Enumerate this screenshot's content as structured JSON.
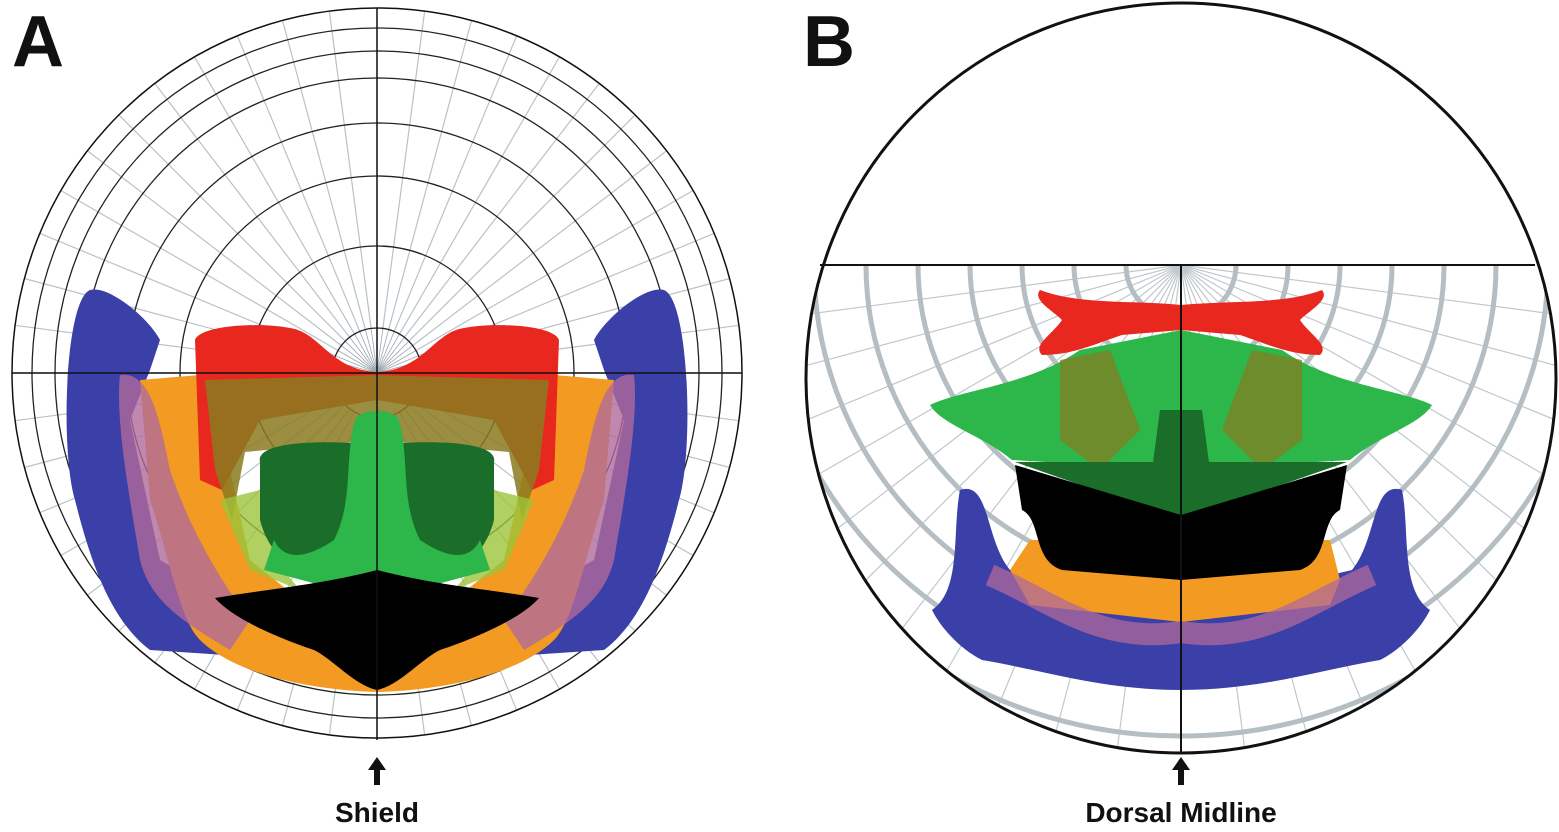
{
  "panels": [
    {
      "label": "A",
      "caption": "Shield"
    },
    {
      "label": "B",
      "caption": "Dorsal Midline"
    }
  ]
}
